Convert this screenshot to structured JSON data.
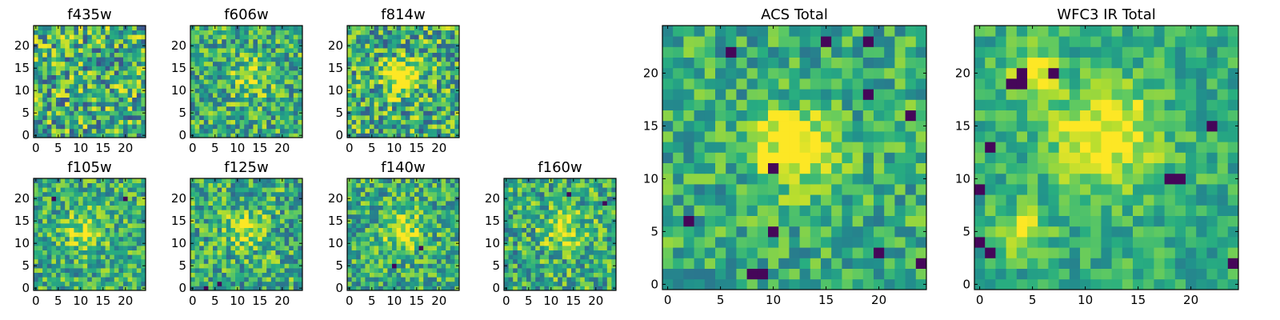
{
  "figure": {
    "colormap": "viridis",
    "colors": [
      "#440154",
      "#3b528b",
      "#21918c",
      "#5ec962",
      "#fde725"
    ]
  },
  "chart_data": [
    {
      "type": "heatmap",
      "title": "f435w",
      "grid_size": 25,
      "xlim": [
        -0.5,
        24.5
      ],
      "ylim": [
        -0.5,
        24.5
      ],
      "xticks": [
        0,
        5,
        10,
        15,
        20
      ],
      "yticks": [
        0,
        5,
        10,
        15,
        20
      ],
      "grid": false,
      "pattern": {
        "seed": 11,
        "noise": 0.75,
        "blobs": [],
        "dark_spots": []
      }
    },
    {
      "type": "heatmap",
      "title": "f606w",
      "grid_size": 25,
      "xlim": [
        -0.5,
        24.5
      ],
      "ylim": [
        -0.5,
        24.5
      ],
      "xticks": [
        0,
        5,
        10,
        15,
        20
      ],
      "yticks": [
        0,
        5,
        10,
        15,
        20
      ],
      "grid": false,
      "pattern": {
        "seed": 23,
        "noise": 0.6,
        "blobs": [
          [
            13,
            13,
            3,
            0.25
          ]
        ],
        "dark_spots": []
      }
    },
    {
      "type": "heatmap",
      "title": "f814w",
      "grid_size": 25,
      "xlim": [
        -0.5,
        24.5
      ],
      "ylim": [
        -0.5,
        24.5
      ],
      "xticks": [
        0,
        5,
        10,
        15,
        20
      ],
      "yticks": [
        0,
        5,
        10,
        15,
        20
      ],
      "grid": false,
      "pattern": {
        "seed": 37,
        "noise": 0.7,
        "blobs": [
          [
            12,
            13,
            2.5,
            0.6
          ]
        ],
        "dark_spots": []
      }
    },
    {
      "type": "heatmap",
      "title": "f105w",
      "grid_size": 25,
      "xlim": [
        -0.5,
        24.5
      ],
      "ylim": [
        -0.5,
        24.5
      ],
      "xticks": [
        0,
        5,
        10,
        15,
        20
      ],
      "yticks": [
        0,
        5,
        10,
        15,
        20
      ],
      "grid": false,
      "pattern": {
        "seed": 41,
        "noise": 0.55,
        "blobs": [
          [
            11,
            13,
            3,
            0.3
          ]
        ],
        "dark_spots": [
          [
            4,
            20
          ],
          [
            20,
            20
          ]
        ]
      }
    },
    {
      "type": "heatmap",
      "title": "f125w",
      "grid_size": 25,
      "xlim": [
        -0.5,
        24.5
      ],
      "ylim": [
        -0.5,
        24.5
      ],
      "xticks": [
        0,
        5,
        10,
        15,
        20
      ],
      "yticks": [
        0,
        5,
        10,
        15,
        20
      ],
      "grid": false,
      "pattern": {
        "seed": 53,
        "noise": 0.6,
        "blobs": [
          [
            12,
            13,
            3,
            0.3
          ]
        ],
        "dark_spots": [
          [
            6,
            1
          ],
          [
            3,
            0
          ]
        ]
      }
    },
    {
      "type": "heatmap",
      "title": "f140w",
      "grid_size": 25,
      "xlim": [
        -0.5,
        24.5
      ],
      "ylim": [
        -0.5,
        24.5
      ],
      "xticks": [
        0,
        5,
        10,
        15,
        20
      ],
      "yticks": [
        0,
        5,
        10,
        15,
        20
      ],
      "grid": false,
      "pattern": {
        "seed": 67,
        "noise": 0.55,
        "blobs": [
          [
            12,
            13,
            3,
            0.35
          ]
        ],
        "dark_spots": [
          [
            10,
            5
          ],
          [
            16,
            9
          ]
        ]
      }
    },
    {
      "type": "heatmap",
      "title": "f160w",
      "grid_size": 25,
      "xlim": [
        -0.5,
        24.5
      ],
      "ylim": [
        -0.5,
        24.5
      ],
      "xticks": [
        0,
        5,
        10,
        15,
        20
      ],
      "yticks": [
        0,
        5,
        10,
        15,
        20
      ],
      "grid": false,
      "pattern": {
        "seed": 79,
        "noise": 0.6,
        "blobs": [
          [
            13,
            13,
            3,
            0.35
          ]
        ],
        "dark_spots": [
          [
            14,
            21
          ],
          [
            22,
            19
          ]
        ]
      }
    },
    {
      "type": "heatmap",
      "title": "ACS Total",
      "grid_size": 25,
      "xlim": [
        -0.5,
        24.5
      ],
      "ylim": [
        -0.5,
        24.5
      ],
      "xticks": [
        0,
        5,
        10,
        15,
        20
      ],
      "yticks": [
        0,
        5,
        10,
        15,
        20
      ],
      "grid": false,
      "pattern": {
        "seed": 97,
        "noise": 0.45,
        "blobs": [
          [
            12,
            13,
            2.5,
            0.55
          ]
        ],
        "dark_spots": [
          [
            6,
            22
          ],
          [
            15,
            23
          ],
          [
            19,
            23
          ],
          [
            10,
            11
          ],
          [
            10,
            5
          ],
          [
            8,
            1
          ],
          [
            9,
            1
          ],
          [
            20,
            3
          ],
          [
            24,
            2
          ],
          [
            2,
            6
          ],
          [
            19,
            18
          ],
          [
            23,
            16
          ]
        ]
      }
    },
    {
      "type": "heatmap",
      "title": "WFC3 IR Total",
      "grid_size": 25,
      "xlim": [
        -0.5,
        24.5
      ],
      "ylim": [
        -0.5,
        24.5
      ],
      "xticks": [
        0,
        5,
        10,
        15,
        20
      ],
      "yticks": [
        0,
        5,
        10,
        15,
        20
      ],
      "grid": false,
      "pattern": {
        "seed": 131,
        "noise": 0.35,
        "blobs": [
          [
            12,
            14,
            3.5,
            0.45
          ],
          [
            5,
            20,
            1.5,
            0.45
          ],
          [
            4,
            5,
            1.5,
            0.35
          ]
        ],
        "dark_spots": [
          [
            3,
            19
          ],
          [
            4,
            19
          ],
          [
            1,
            13
          ],
          [
            22,
            15
          ],
          [
            18,
            10
          ],
          [
            19,
            10
          ],
          [
            0,
            9
          ],
          [
            0,
            4
          ],
          [
            1,
            3
          ],
          [
            24,
            2
          ],
          [
            4,
            20
          ],
          [
            7,
            20
          ]
        ]
      }
    }
  ]
}
